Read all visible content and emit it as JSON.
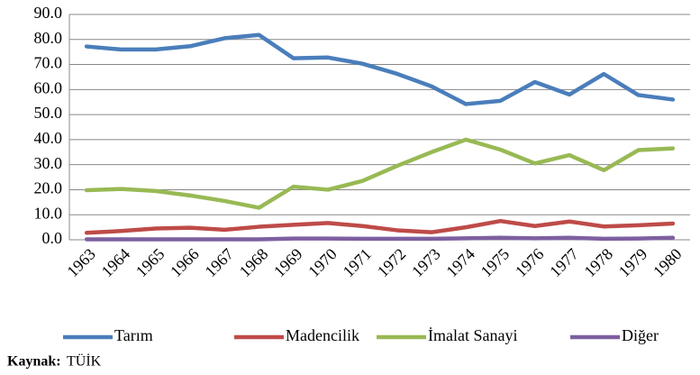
{
  "chart_data": {
    "type": "line",
    "categories": [
      "1963",
      "1964",
      "1965",
      "1966",
      "1967",
      "1968",
      "1969",
      "1970",
      "1971",
      "1972",
      "1973",
      "1974",
      "1975",
      "1976",
      "1977",
      "1978",
      "1979",
      "1980"
    ],
    "series": [
      {
        "name": "Tarım",
        "color": "#4a7ebb",
        "values": [
          77.2,
          76,
          76,
          77.3,
          80.5,
          81.8,
          72.5,
          72.8,
          70.3,
          66.3,
          61.3,
          54.2,
          55.5,
          63,
          58,
          66.2,
          57.8,
          56
        ]
      },
      {
        "name": "Madencilik",
        "color": "#be4b48",
        "values": [
          2.8,
          3.5,
          4.5,
          4.8,
          4,
          5.2,
          6,
          6.7,
          5.5,
          3.8,
          3,
          5,
          7.5,
          5.5,
          7.3,
          5.3,
          5.8,
          6.5
        ]
      },
      {
        "name": "İmalat Sanayi",
        "color": "#98b954",
        "values": [
          19.8,
          20.3,
          19.5,
          17.7,
          15.5,
          12.8,
          21.2,
          20,
          23.5,
          29.5,
          35,
          40,
          36,
          30.5,
          33.8,
          27.8,
          35.8,
          36.5
        ]
      },
      {
        "name": "Diğer",
        "color": "#7d60a0",
        "values": [
          0.2,
          0.2,
          0.2,
          0.2,
          0.2,
          0.2,
          0.5,
          0.5,
          0.4,
          0.4,
          0.4,
          0.6,
          0.8,
          0.6,
          0.8,
          0.4,
          0.5,
          0.8
        ]
      }
    ],
    "ylim": [
      0,
      90
    ],
    "yticks": [
      {
        "value": 0,
        "label": "0.0"
      },
      {
        "value": 10,
        "label": "10.0"
      },
      {
        "value": 20,
        "label": "20.0"
      },
      {
        "value": 30,
        "label": "30.0"
      },
      {
        "value": 40,
        "label": "40.0"
      },
      {
        "value": 50,
        "label": "50.0"
      },
      {
        "value": 60,
        "label": "60.0"
      },
      {
        "value": 70,
        "label": "70.0"
      },
      {
        "value": 80,
        "label": "80.0"
      },
      {
        "value": 90,
        "label": "90.0"
      }
    ],
    "grid": true,
    "legend": "bottom",
    "source": {
      "label": "Kaynak:",
      "text": "TÜİK"
    }
  }
}
